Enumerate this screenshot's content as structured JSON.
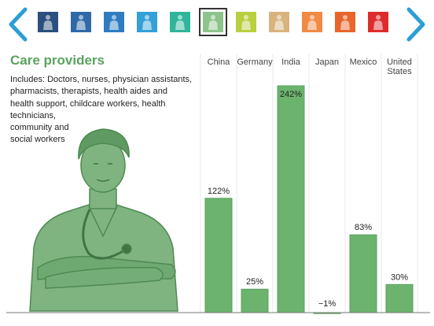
{
  "nav": {
    "thumbnails": [
      {
        "color": "#2b4f7e",
        "selected": false
      },
      {
        "color": "#2f6aa6",
        "selected": false
      },
      {
        "color": "#2f7dc1",
        "selected": false
      },
      {
        "color": "#35a0d8",
        "selected": false
      },
      {
        "color": "#2fb59a",
        "selected": false
      },
      {
        "color": "#8cc48c",
        "selected": true
      },
      {
        "color": "#b9cf3f",
        "selected": false
      },
      {
        "color": "#d9b37d",
        "selected": false
      },
      {
        "color": "#f08a44",
        "selected": false
      },
      {
        "color": "#e9652c",
        "selected": false
      },
      {
        "color": "#de2c2c",
        "selected": false
      }
    ],
    "arrow_color": "#2a9fd6"
  },
  "panel": {
    "title": "Care providers",
    "includes_lines": [
      "Includes: Doctors, nurses, physician assistants,",
      "pharmacists, therapists, health aides and",
      "health support, childcare workers, health",
      "technicians,",
      "community and",
      "social workers"
    ]
  },
  "colors": {
    "accent_green": "#5aa25f",
    "bar_fill": "#6cb36e"
  },
  "chart_data": {
    "type": "bar",
    "categories": [
      "China",
      "Germany",
      "India",
      "Japan",
      "Mexico",
      "United States"
    ],
    "values": [
      122,
      25,
      242,
      -1,
      83,
      30
    ],
    "value_labels": [
      "122%",
      "25%",
      "242%",
      "−1%",
      "83%",
      "30%"
    ],
    "title": "",
    "xlabel": "",
    "ylabel": "",
    "ylim": [
      -1,
      242
    ]
  }
}
